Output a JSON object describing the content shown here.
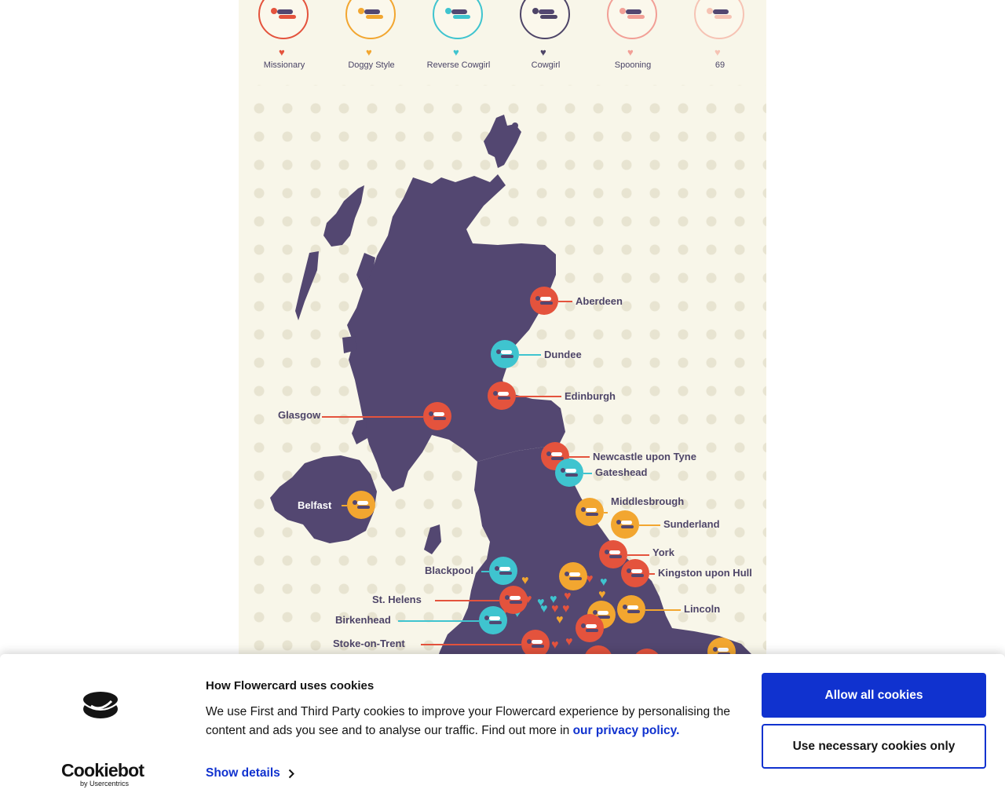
{
  "colors": {
    "missionary": "#e4533d",
    "doggy_style": "#f2a630",
    "reverse_cowgirl": "#3fc4cf",
    "cowgirl": "#4e4568",
    "spooning": "#f29f96",
    "sixty_nine": "#f6c3b4",
    "map_land": "#534771",
    "cookie_primary": "#1032cf"
  },
  "legend": [
    {
      "label": "Missionary",
      "color": "#e4533d"
    },
    {
      "label": "Doggy Style",
      "color": "#f2a630"
    },
    {
      "label": "Reverse Cowgirl",
      "color": "#3fc4cf"
    },
    {
      "label": "Cowgirl",
      "color": "#4e4568"
    },
    {
      "label": "Spooning",
      "color": "#f29f96"
    },
    {
      "label": "69",
      "color": "#f6c3b4"
    }
  ],
  "map": {
    "cities": [
      {
        "name": "Aberdeen",
        "position": "Missionary"
      },
      {
        "name": "Dundee",
        "position": "Reverse Cowgirl"
      },
      {
        "name": "Edinburgh",
        "position": "Missionary"
      },
      {
        "name": "Glasgow",
        "position": "Missionary"
      },
      {
        "name": "Newcastle upon Tyne",
        "position": "Missionary"
      },
      {
        "name": "Gateshead",
        "position": "Reverse Cowgirl"
      },
      {
        "name": "Belfast",
        "position": "Doggy Style"
      },
      {
        "name": "Middlesbrough",
        "position": "Doggy Style"
      },
      {
        "name": "Sunderland",
        "position": "Doggy Style"
      },
      {
        "name": "York",
        "position": "Missionary"
      },
      {
        "name": "Kingston upon Hull",
        "position": "Missionary"
      },
      {
        "name": "Blackpool",
        "position": "Reverse Cowgirl"
      },
      {
        "name": "St. Helens",
        "position": "Missionary"
      },
      {
        "name": "Lincoln",
        "position": "Doggy Style"
      },
      {
        "name": "Birkenhead",
        "position": "Reverse Cowgirl"
      },
      {
        "name": "Stoke-on-Trent",
        "position": "Missionary"
      }
    ]
  },
  "cookie_banner": {
    "title": "How Flowercard uses cookies",
    "body": "We use First and Third Party cookies to improve your Flowercard experience by personalising the content and ads you see and to analyse our traffic. Find out more in",
    "policy_link": "our privacy policy.",
    "show_details": "Show details",
    "allow_all": "Allow all cookies",
    "necessary_only": "Use necessary cookies only",
    "brand_name": "Cookiebot",
    "brand_sub": "by Usercentrics"
  }
}
